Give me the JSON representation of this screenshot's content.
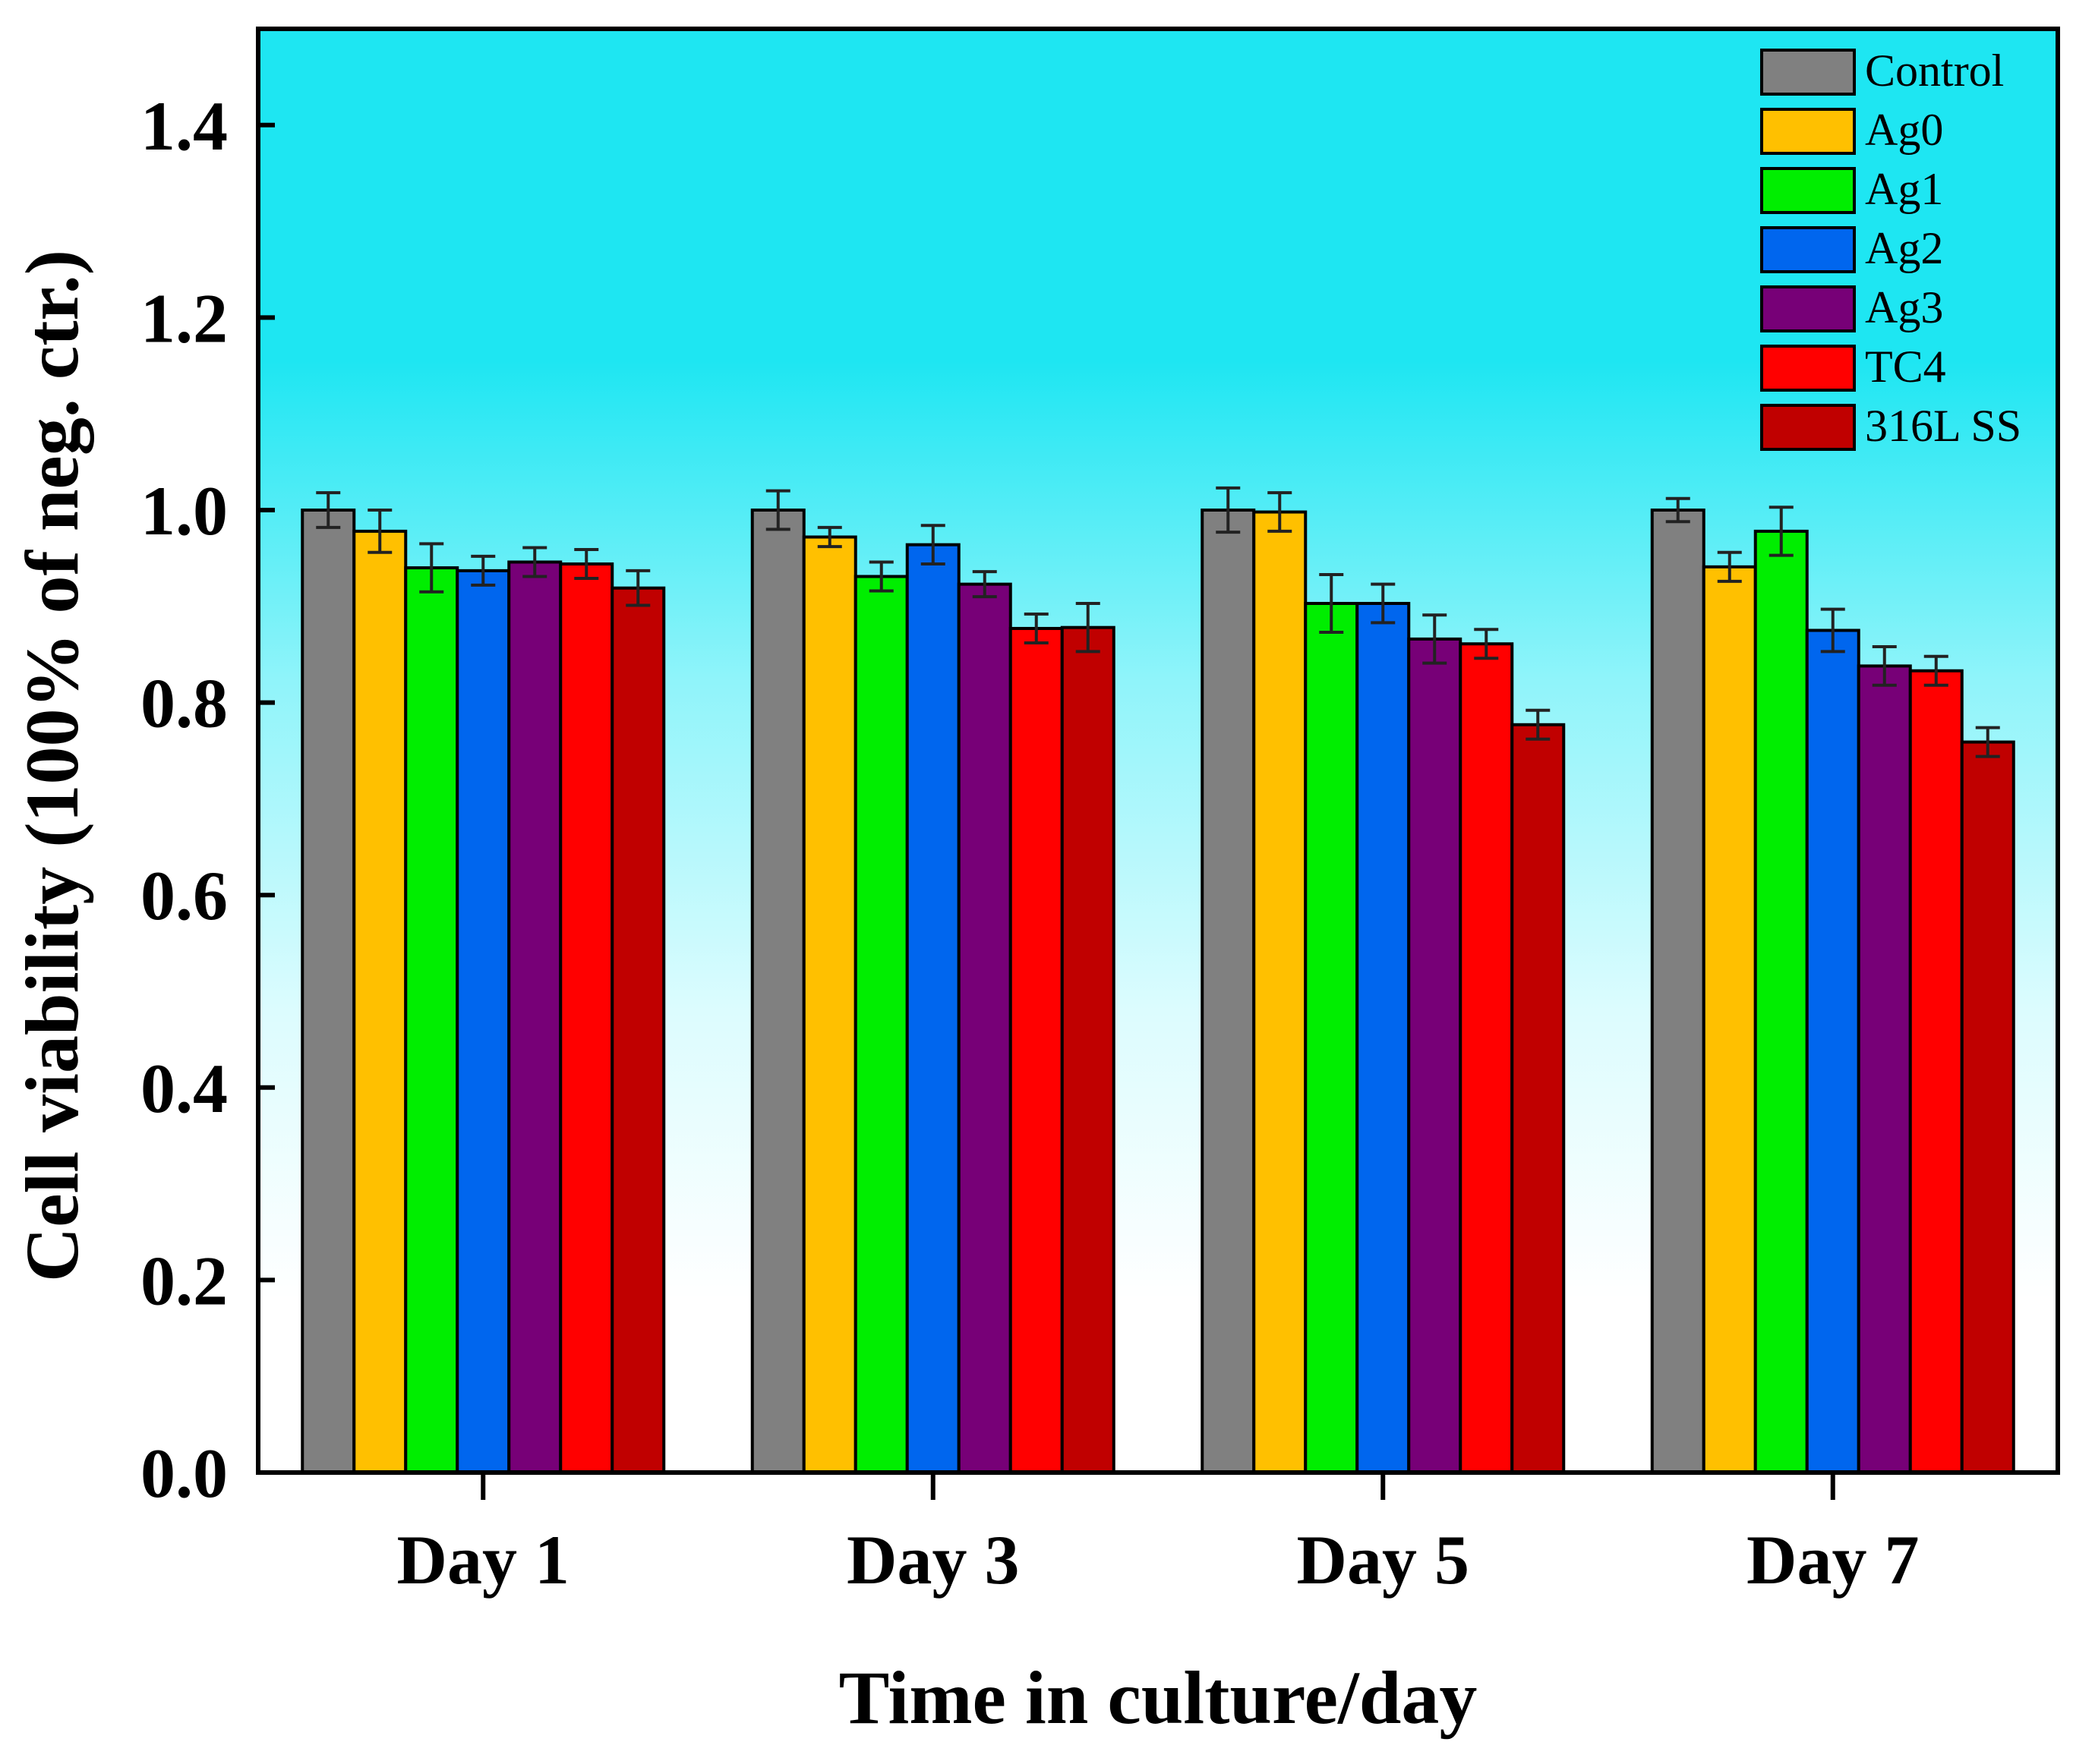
{
  "chart_data": {
    "type": "bar",
    "title": "",
    "xlabel": "Time in culture/day",
    "ylabel": "Cell viability (100% of neg. ctr.)",
    "ylim": [
      0,
      1.5
    ],
    "yticks": [
      0.0,
      0.2,
      0.4,
      0.6,
      0.8,
      1.0,
      1.2,
      1.4
    ],
    "ytick_labels": [
      "0.0",
      "0.2",
      "0.4",
      "0.6",
      "0.8",
      "1.0",
      "1.2",
      "1.4"
    ],
    "categories": [
      "Day 1",
      "Day 3",
      "Day 5",
      "Day 7"
    ],
    "legend_position": "top-right",
    "background": "gradient cyan (top) to white (bottom)",
    "colors": {
      "plot_bg_top": "#1ee6f2",
      "plot_bg_bottom": "#ffffff",
      "axis": "#000000"
    },
    "series": [
      {
        "name": "Control",
        "color": "#808080",
        "values": [
          1.0,
          1.0,
          1.0,
          1.0
        ],
        "errors": [
          0.018,
          0.02,
          0.023,
          0.012
        ]
      },
      {
        "name": "Ag0",
        "color": "#ffc000",
        "values": [
          0.978,
          0.972,
          0.998,
          0.941
        ],
        "errors": [
          0.022,
          0.01,
          0.02,
          0.015
        ]
      },
      {
        "name": "Ag1",
        "color": "#00ee00",
        "values": [
          0.94,
          0.931,
          0.903,
          0.978
        ],
        "errors": [
          0.025,
          0.015,
          0.03,
          0.025
        ]
      },
      {
        "name": "Ag2",
        "color": "#0066ee",
        "values": [
          0.937,
          0.964,
          0.903,
          0.875
        ],
        "errors": [
          0.015,
          0.02,
          0.02,
          0.022
        ]
      },
      {
        "name": "Ag3",
        "color": "#770077",
        "values": [
          0.946,
          0.923,
          0.866,
          0.838
        ],
        "errors": [
          0.015,
          0.013,
          0.025,
          0.02
        ]
      },
      {
        "name": "TC4",
        "color": "#ff0000",
        "values": [
          0.944,
          0.877,
          0.861,
          0.833
        ],
        "errors": [
          0.015,
          0.015,
          0.015,
          0.015
        ]
      },
      {
        "name": "316L SS",
        "color": "#c00000",
        "values": [
          0.919,
          0.878,
          0.777,
          0.759
        ],
        "errors": [
          0.018,
          0.025,
          0.015,
          0.015
        ]
      }
    ]
  }
}
